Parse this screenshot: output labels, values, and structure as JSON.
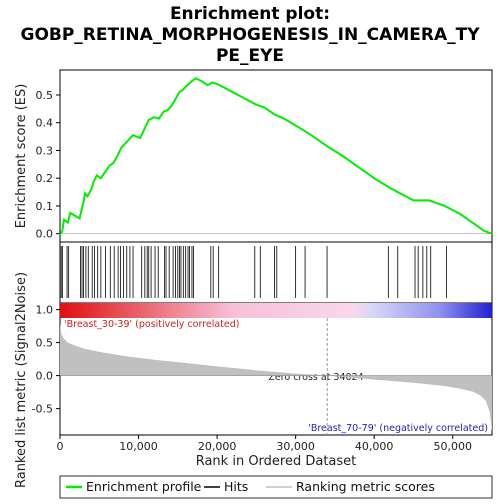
{
  "chart_data": {
    "type": "line",
    "title_lines": [
      "Enrichment plot:",
      "GOBP_RETINA_MORPHOGENESIS_IN_CAMERA_TY",
      "PE_EYE"
    ],
    "es_panel": {
      "ylabel": "Enrichment score (ES)",
      "ylim": [
        -0.03,
        0.59
      ],
      "yticks": [
        0.0,
        0.1,
        0.2,
        0.3,
        0.4,
        0.5
      ],
      "ytick_labels": [
        "0.0",
        "0.1",
        "0.2",
        "0.3",
        "0.4",
        "0.5"
      ],
      "series": [
        {
          "name": "Enrichment profile",
          "color": "#00ee00",
          "x": [
            0,
            300,
            500,
            1000,
            1300,
            2500,
            2700,
            3000,
            3200,
            3500,
            4000,
            4300,
            4700,
            5200,
            5800,
            6300,
            6800,
            7300,
            7800,
            8300,
            8800,
            9300,
            10200,
            10800,
            11300,
            12000,
            12600,
            13200,
            13700,
            14300,
            14800,
            15200,
            15700,
            16200,
            16800,
            17300,
            18000,
            18800,
            19400,
            20000,
            21000,
            22000,
            23000,
            24000,
            25000,
            26000,
            27300,
            28500,
            30000,
            32000,
            34024,
            36000,
            38000,
            40000,
            42000,
            43000,
            44000,
            45000,
            46000,
            47000,
            48000,
            49000,
            50000,
            51000,
            52000,
            53000,
            54000,
            55000
          ],
          "y": [
            -0.005,
            0.01,
            0.05,
            0.04,
            0.075,
            0.055,
            0.08,
            0.115,
            0.145,
            0.135,
            0.16,
            0.19,
            0.21,
            0.2,
            0.225,
            0.245,
            0.255,
            0.28,
            0.31,
            0.325,
            0.34,
            0.355,
            0.345,
            0.38,
            0.41,
            0.42,
            0.415,
            0.44,
            0.445,
            0.465,
            0.49,
            0.51,
            0.52,
            0.535,
            0.55,
            0.56,
            0.55,
            0.535,
            0.545,
            0.54,
            0.525,
            0.51,
            0.495,
            0.48,
            0.465,
            0.455,
            0.43,
            0.415,
            0.39,
            0.355,
            0.315,
            0.28,
            0.24,
            0.2,
            0.165,
            0.15,
            0.135,
            0.12,
            0.12,
            0.12,
            0.11,
            0.1,
            0.085,
            0.07,
            0.05,
            0.03,
            0.01,
            0.0
          ]
        }
      ]
    },
    "hits_panel": {
      "name": "Hits",
      "positions": [
        150,
        300,
        900,
        1100,
        2600,
        2800,
        3000,
        3300,
        3600,
        4100,
        4400,
        4800,
        5200,
        5800,
        6400,
        6900,
        7400,
        7700,
        8100,
        8500,
        8900,
        9300,
        10400,
        10800,
        11100,
        11300,
        11600,
        12100,
        12500,
        13300,
        13500,
        13900,
        14400,
        14700,
        15000,
        15200,
        15400,
        15700,
        16000,
        16300,
        16500,
        16800,
        17000,
        19200,
        19500,
        20200,
        24800,
        25500,
        27300,
        27600,
        30000,
        31200,
        34000,
        41800,
        43000,
        45200,
        45600,
        46200,
        46700,
        47200,
        49200
      ]
    },
    "ranked_panel": {
      "ylabel": "Ranked list metric (Signal2Noise)",
      "xlabel": "Rank in Ordered Dataset",
      "xlim": [
        0,
        55000
      ],
      "ylim": [
        -0.9,
        1.1
      ],
      "yticks": [
        1.0,
        0.5,
        0.0,
        -0.5
      ],
      "ytick_labels": [
        "1.0",
        "0.5",
        "0.0",
        "-0.5"
      ],
      "xticks": [
        0,
        10000,
        20000,
        30000,
        40000,
        50000
      ],
      "xtick_labels": [
        "0",
        "10,000",
        "20,000",
        "30,000",
        "40,000",
        "50,000"
      ],
      "metric_curve": {
        "name": "Ranking metric scores",
        "color": "#c0c0c0",
        "x": [
          0,
          200,
          500,
          1000,
          2000,
          3000,
          5000,
          8000,
          12000,
          16000,
          20000,
          25000,
          30000,
          34024,
          38000,
          42000,
          46000,
          49000,
          51000,
          52500,
          53500,
          54200,
          54700,
          55000
        ],
        "y": [
          0.78,
          0.62,
          0.56,
          0.5,
          0.45,
          0.41,
          0.36,
          0.3,
          0.24,
          0.19,
          0.14,
          0.08,
          0.03,
          0.0,
          -0.04,
          -0.08,
          -0.12,
          -0.16,
          -0.2,
          -0.24,
          -0.3,
          -0.38,
          -0.55,
          -0.85
        ]
      },
      "zero_cross_label": "Zero cross at 34024",
      "zero_cross_x": 34024,
      "pos_label": "'Breast_30-39' (positively correlated)",
      "neg_label": "'Breast_70-79' (negatively correlated)",
      "pos_color": "#d02020",
      "neg_color": "#2020c0"
    },
    "legend": [
      {
        "label": "Enrichment profile",
        "color": "#00ee00"
      },
      {
        "label": "Hits",
        "color": "#000000"
      },
      {
        "label": "Ranking metric scores",
        "color": "#c0c0c0"
      }
    ]
  }
}
